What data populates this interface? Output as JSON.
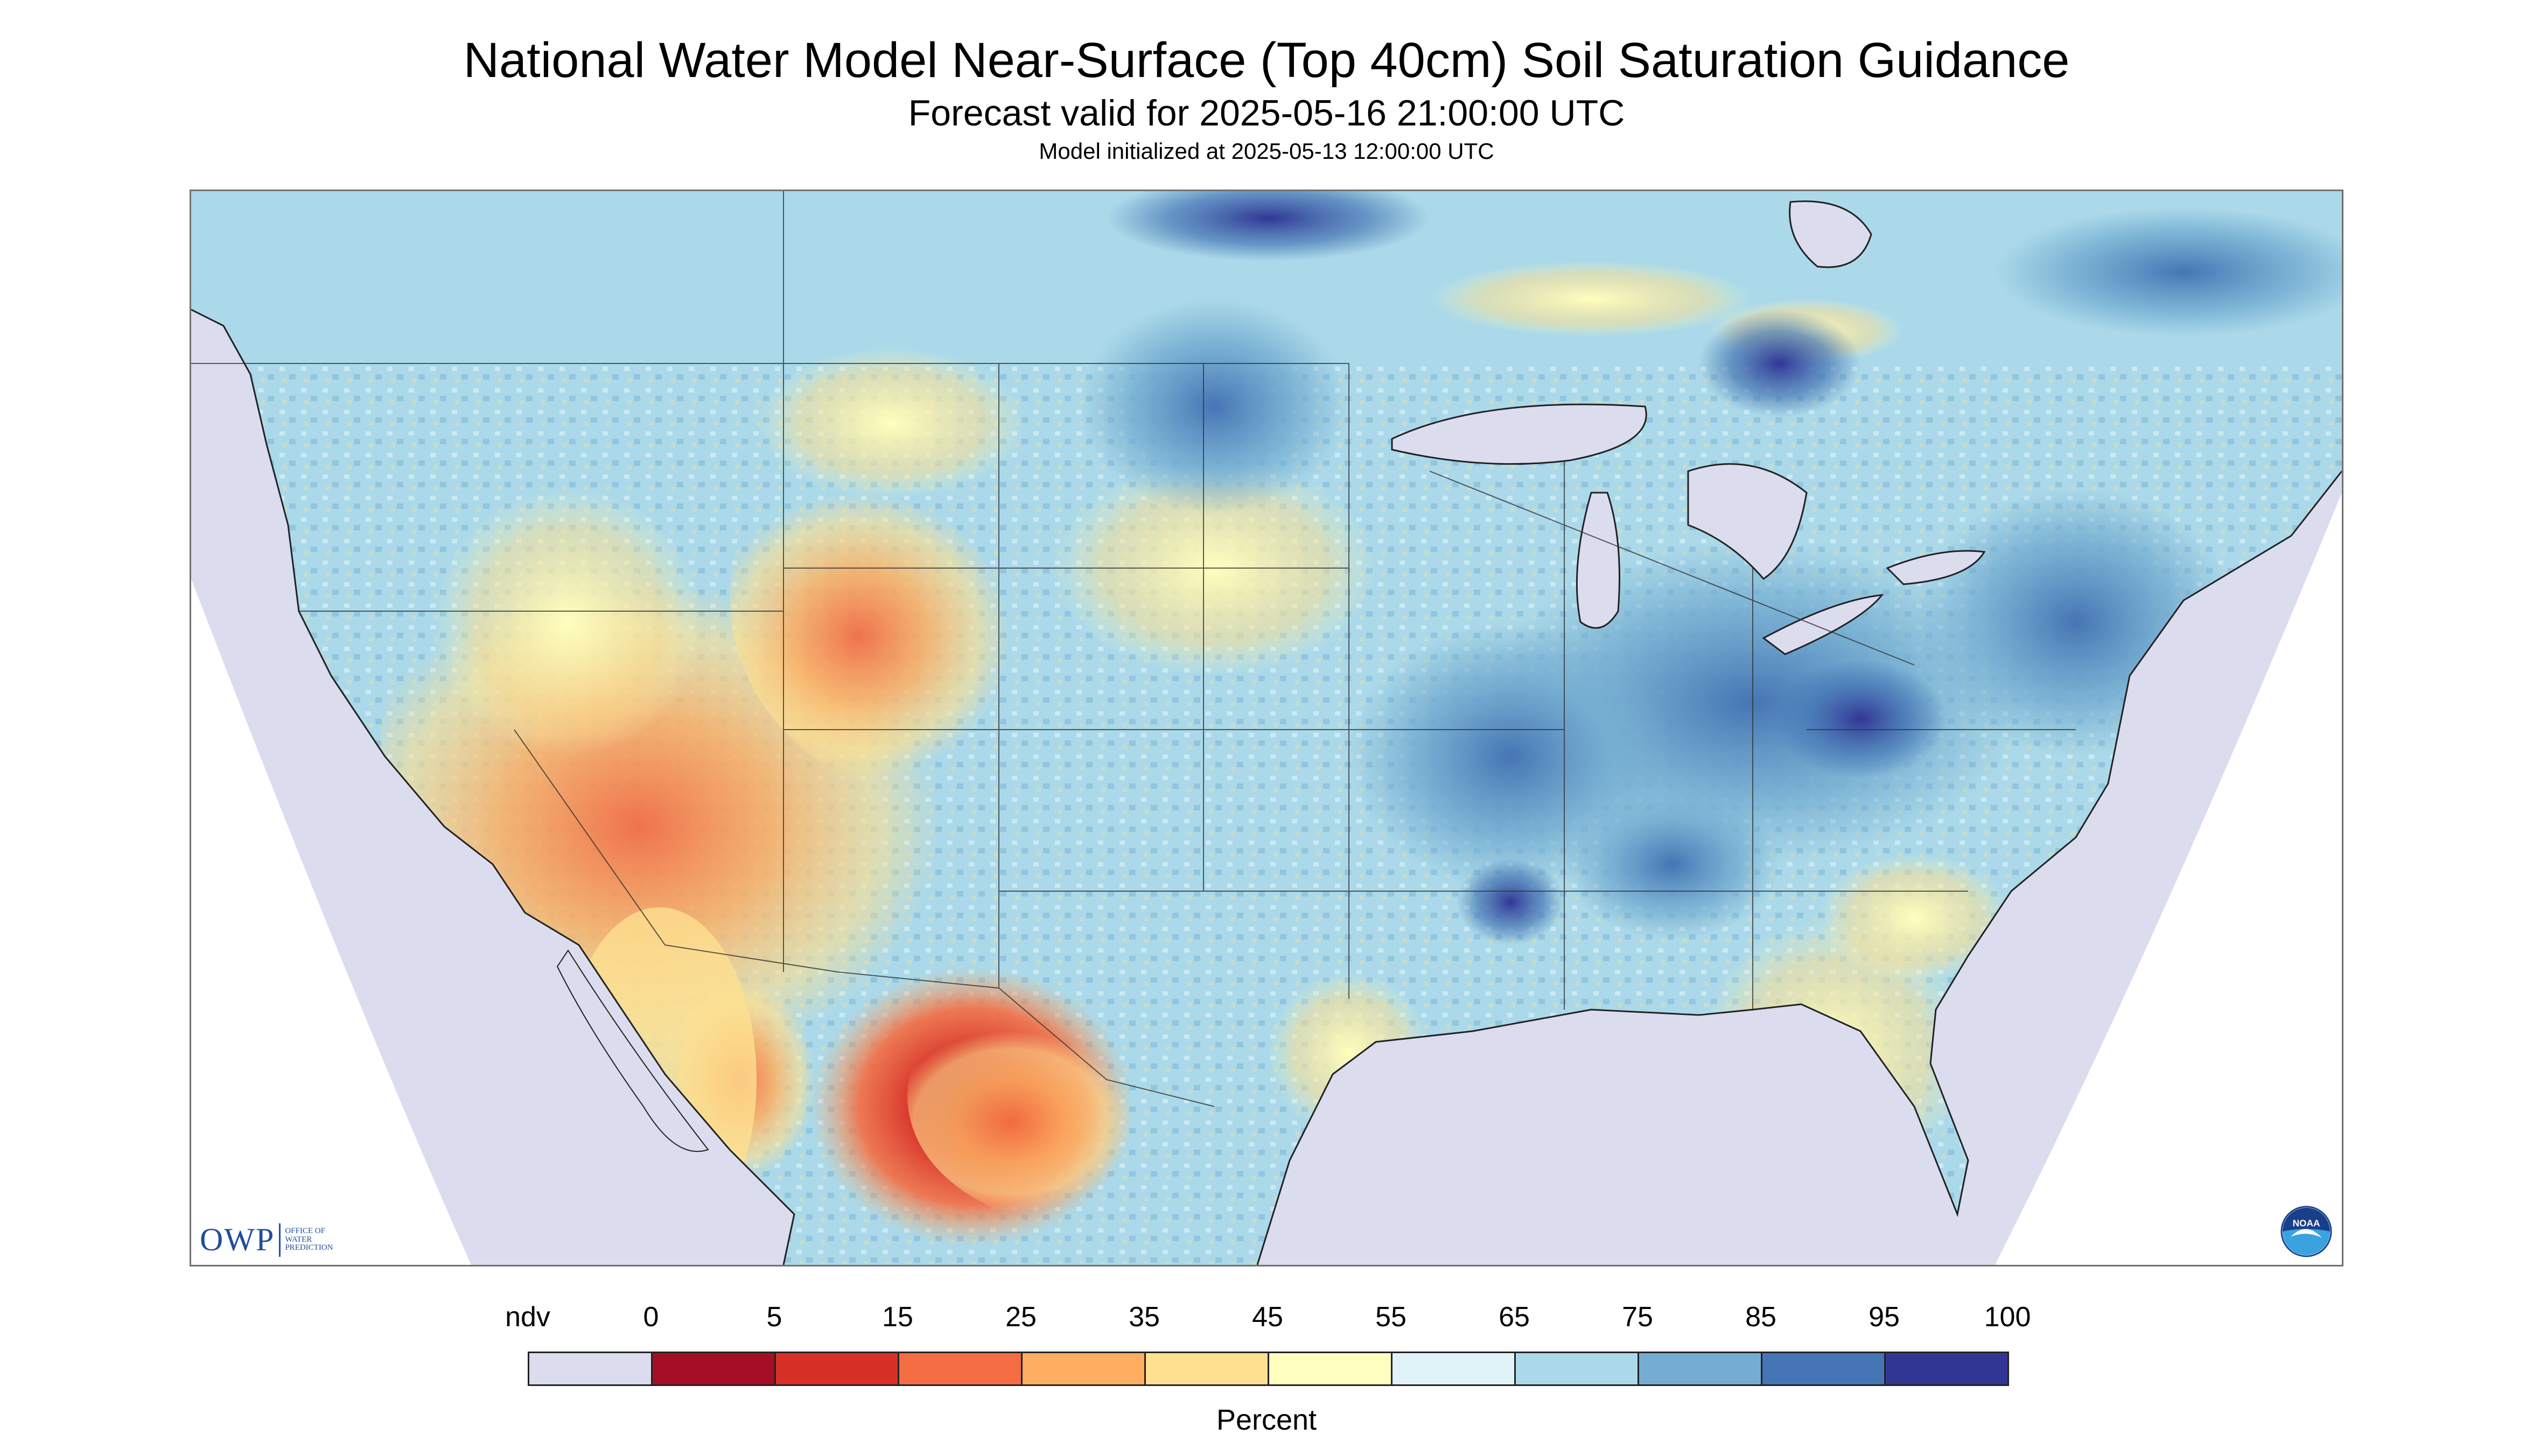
{
  "title": "National Water Model Near-Surface (Top 40cm) Soil Saturation Guidance",
  "subtitle": "Forecast valid for 2025-05-16 21:00:00 UTC",
  "init_line": "Model initialized at 2025-05-13 12:00:00 UTC",
  "logos": {
    "owp_text": "OWP",
    "owp_subtext": [
      "Office of",
      "Water",
      "Prediction"
    ],
    "noaa_text": "NOAA"
  },
  "legend": {
    "unit": "Percent",
    "labels": [
      "ndv",
      "0",
      "5",
      "15",
      "25",
      "35",
      "45",
      "55",
      "65",
      "75",
      "85",
      "95",
      "100"
    ],
    "colors": [
      "#dcdcef",
      "#a50f26",
      "#d73027",
      "#f46d43",
      "#fdae61",
      "#fee090",
      "#ffffbf",
      "#e0f3f8",
      "#abd9e9",
      "#74add1",
      "#4575b4",
      "#313695"
    ]
  },
  "map_colors": {
    "ocean_nodata": "#dcdcef",
    "lake": "#dcdcef",
    "land_default": "#abd9e9",
    "boundary": "#333333"
  }
}
